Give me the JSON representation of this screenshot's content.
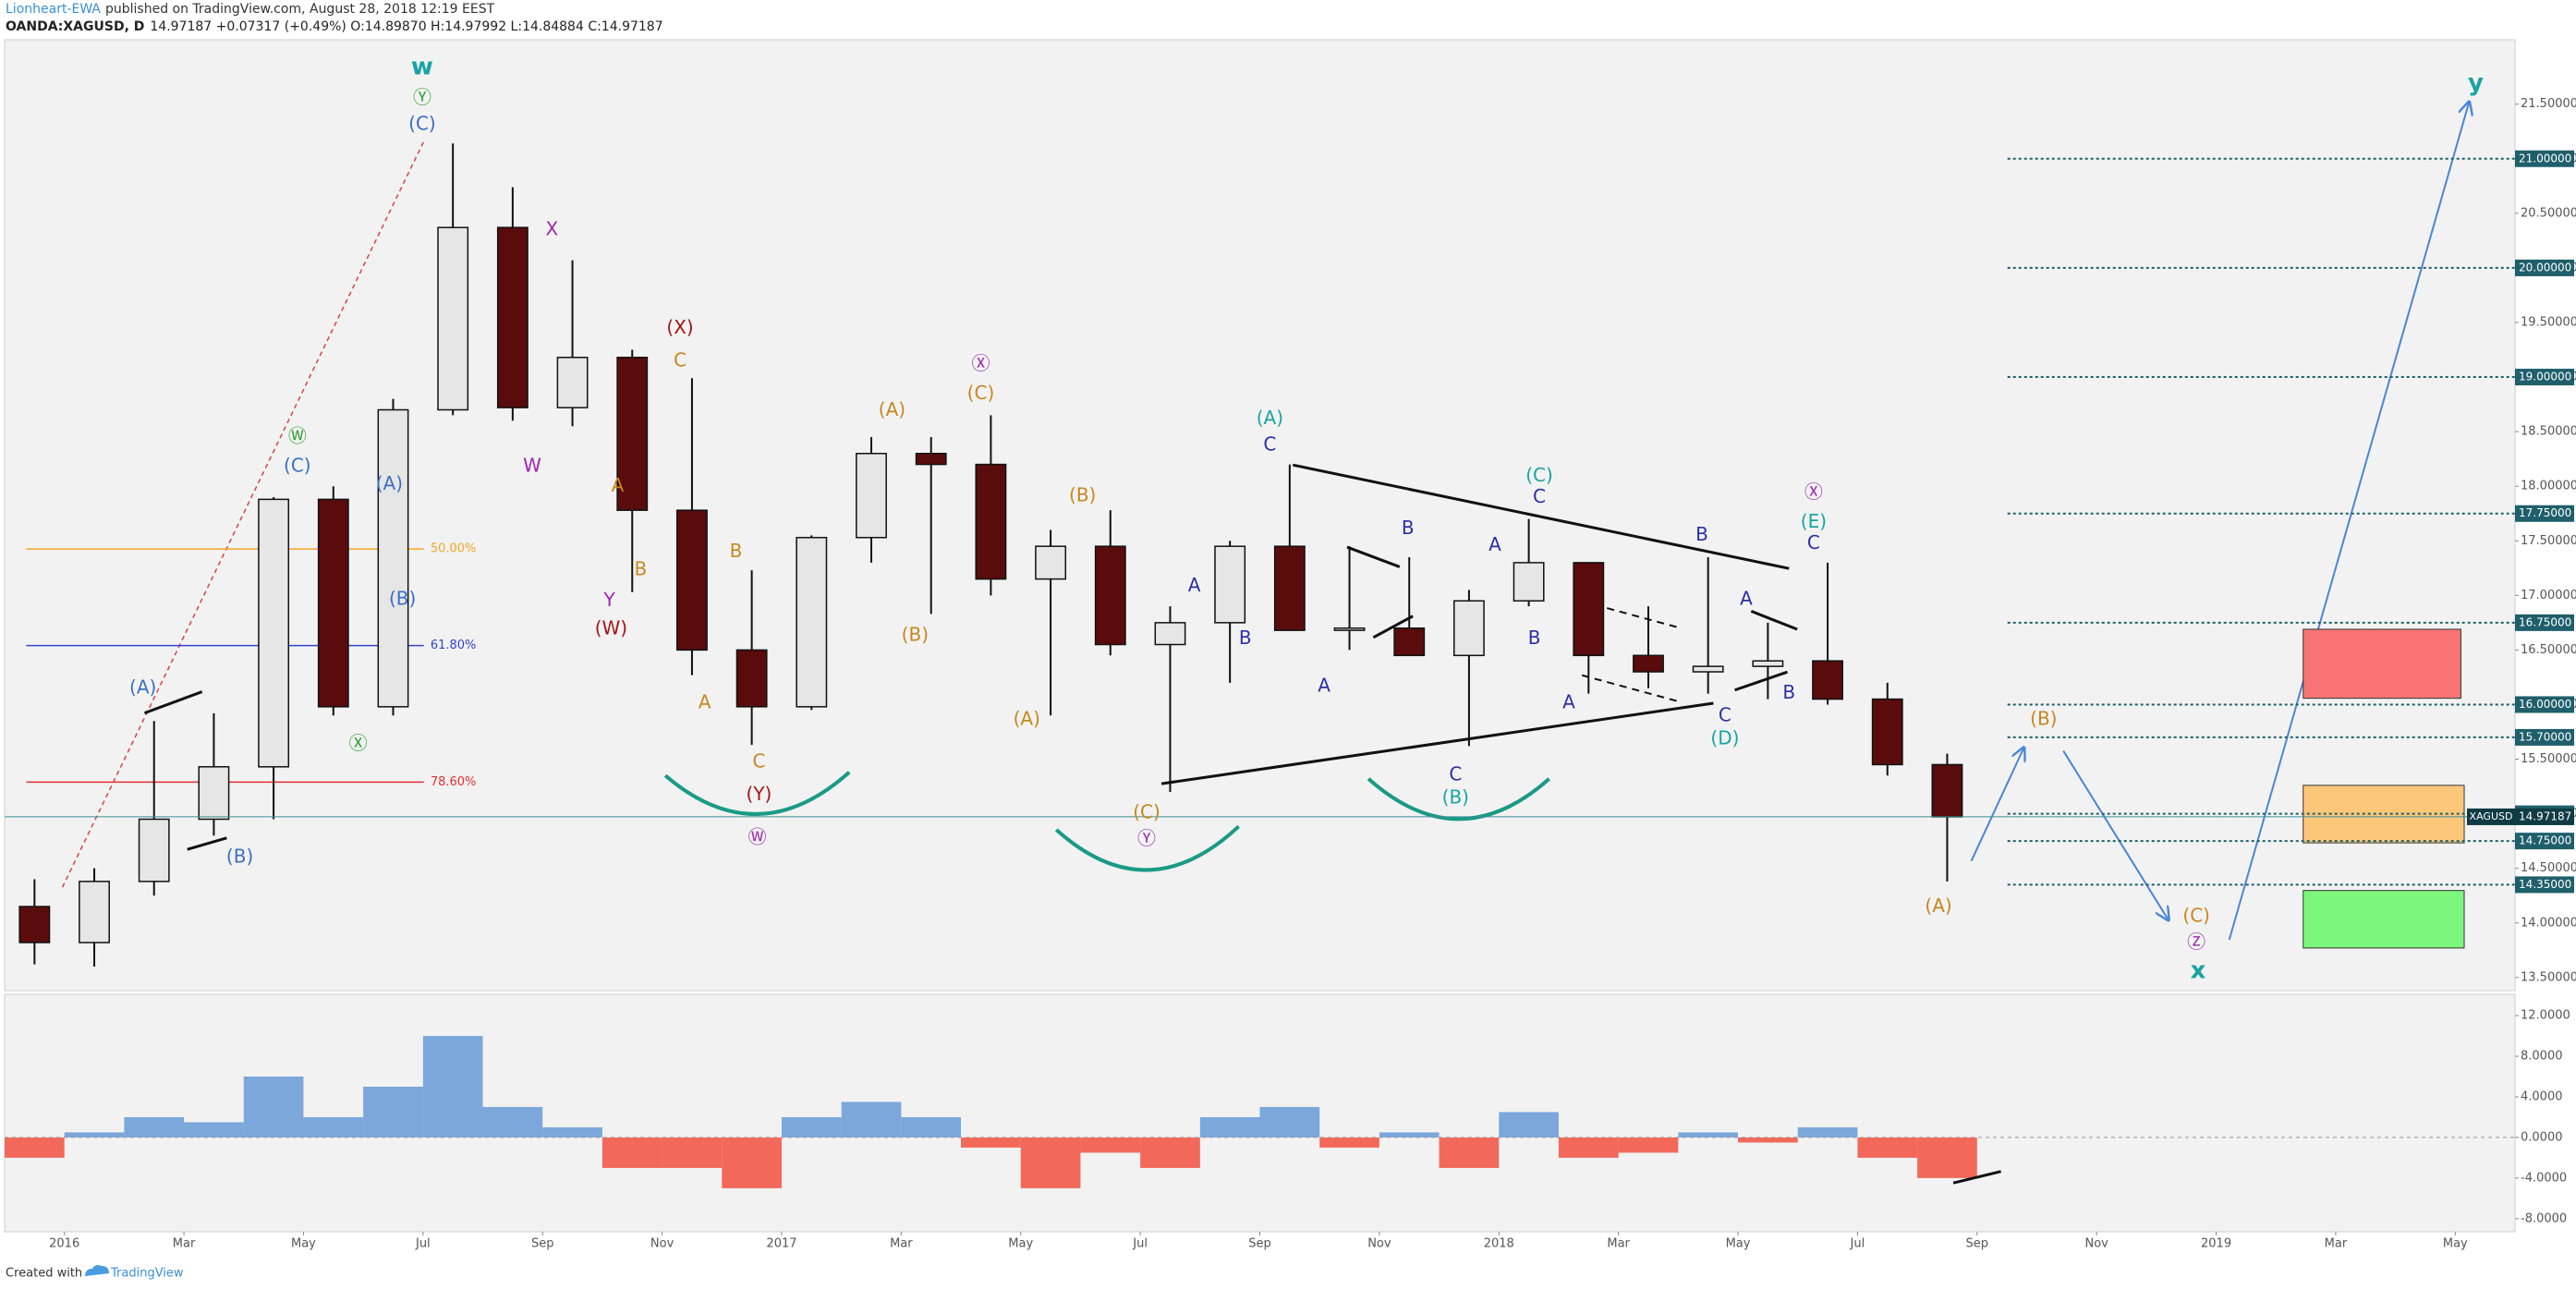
{
  "header": {
    "author": "Lionheart-EWA",
    "byline": "published on TradingView.com, August 28, 2018 12:19 EEST",
    "symbol": "OANDA:XAGUSD, D",
    "quote": "14.97187 +0.07317 (+0.49%) O:14.89870 H:14.97992 L:14.84884 C:14.97187"
  },
  "chart_data": [
    {
      "type": "candlestick",
      "x": [
        "2015-12",
        "2016-01",
        "2016-02",
        "2016-03",
        "2016-04",
        "2016-05",
        "2016-06",
        "2016-07",
        "2016-08",
        "2016-09",
        "2016-10",
        "2016-11",
        "2016-12",
        "2017-01",
        "2017-02",
        "2017-03",
        "2017-04",
        "2017-05",
        "2017-06",
        "2017-07",
        "2017-08",
        "2017-09",
        "2017-10",
        "2017-11",
        "2017-12",
        "2018-01",
        "2018-02",
        "2018-03",
        "2018-04",
        "2018-05",
        "2018-06",
        "2018-07",
        "2018-08"
      ],
      "open": [
        14.15,
        13.82,
        14.38,
        14.95,
        15.43,
        17.88,
        15.98,
        18.7,
        20.37,
        18.72,
        19.18,
        17.78,
        16.5,
        15.98,
        17.53,
        18.3,
        18.2,
        17.15,
        17.45,
        16.55,
        16.75,
        17.45,
        16.68,
        16.7,
        16.45,
        16.95,
        17.3,
        16.45,
        16.3,
        16.35,
        16.4,
        16.05,
        15.45
      ],
      "high": [
        14.4,
        14.5,
        15.85,
        15.92,
        17.9,
        18.0,
        18.8,
        21.14,
        20.74,
        20.07,
        19.25,
        18.99,
        17.23,
        17.55,
        18.45,
        18.45,
        18.65,
        17.6,
        17.78,
        16.9,
        17.5,
        18.2,
        17.45,
        17.35,
        17.05,
        17.7,
        17.3,
        16.9,
        17.35,
        16.75,
        17.3,
        16.2,
        15.55
      ],
      "low": [
        13.62,
        13.6,
        14.25,
        14.8,
        14.95,
        15.9,
        15.9,
        18.65,
        18.6,
        18.55,
        17.03,
        16.27,
        15.63,
        15.95,
        17.3,
        16.83,
        17.0,
        15.9,
        16.45,
        15.2,
        16.2,
        16.7,
        16.5,
        16.5,
        15.62,
        16.9,
        16.1,
        16.15,
        16.1,
        16.05,
        16.0,
        15.35,
        14.38
      ],
      "close": [
        13.82,
        14.38,
        14.95,
        15.43,
        17.88,
        15.98,
        18.7,
        20.37,
        18.72,
        19.18,
        17.78,
        16.5,
        15.98,
        17.53,
        18.3,
        18.2,
        17.15,
        17.45,
        16.55,
        16.75,
        17.45,
        16.68,
        16.7,
        16.45,
        16.95,
        17.3,
        16.45,
        16.3,
        16.35,
        16.4,
        16.05,
        15.45,
        14.97187
      ],
      "up_color": "#e6e6e6",
      "down_color": "#5a0c0c",
      "xlim": [
        "2015-12",
        "2019-06"
      ],
      "xticks": [
        {
          "value": "2016-01",
          "label": "2016"
        },
        {
          "value": "2016-03",
          "label": "Mar"
        },
        {
          "value": "2016-05",
          "label": "May"
        },
        {
          "value": "2016-07",
          "label": "Jul"
        },
        {
          "value": "2016-09",
          "label": "Sep"
        },
        {
          "value": "2016-11",
          "label": "Nov"
        },
        {
          "value": "2017-01",
          "label": "2017"
        },
        {
          "value": "2017-03",
          "label": "Mar"
        },
        {
          "value": "2017-05",
          "label": "May"
        },
        {
          "value": "2017-07",
          "label": "Jul"
        },
        {
          "value": "2017-09",
          "label": "Sep"
        },
        {
          "value": "2017-11",
          "label": "Nov"
        },
        {
          "value": "2018-01",
          "label": "2018"
        },
        {
          "value": "2018-03",
          "label": "Mar"
        },
        {
          "value": "2018-05",
          "label": "May"
        },
        {
          "value": "2018-07",
          "label": "Jul"
        },
        {
          "value": "2018-09",
          "label": "Sep"
        },
        {
          "value": "2018-11",
          "label": "Nov"
        },
        {
          "value": "2019-01",
          "label": "2019"
        },
        {
          "value": "2019-03",
          "label": "Mar"
        },
        {
          "value": "2019-05",
          "label": "May"
        }
      ],
      "ylim": [
        13.38,
        22.09
      ],
      "yticks": [
        {
          "value": 13.5,
          "label": "13.50000"
        },
        {
          "value": 14,
          "label": "14.00000"
        },
        {
          "value": 14.5,
          "label": "14.50000"
        },
        {
          "value": 15,
          "label": "15.00000"
        },
        {
          "value": 15.5,
          "label": "15.50000"
        },
        {
          "value": 16,
          "label": "16.00000"
        },
        {
          "value": 16.5,
          "label": "16.50000"
        },
        {
          "value": 17,
          "label": "17.00000"
        },
        {
          "value": 17.5,
          "label": "17.50000"
        },
        {
          "value": 18,
          "label": "18.00000"
        },
        {
          "value": 18.5,
          "label": "18.50000"
        },
        {
          "value": 19,
          "label": "19.00000"
        },
        {
          "value": 19.5,
          "label": "19.50000"
        },
        {
          "value": 20,
          "label": "20.00000"
        },
        {
          "value": 20.5,
          "label": "20.50000"
        },
        {
          "value": 21,
          "label": "21.00000"
        },
        {
          "value": 21.5,
          "label": "21.50000"
        }
      ],
      "grid": false,
      "levels": [
        {
          "value": 21,
          "label": "21.00000"
        },
        {
          "value": 20,
          "label": "20.00000"
        },
        {
          "value": 19,
          "label": "19.00000"
        },
        {
          "value": 17.75,
          "label": "17.75000"
        },
        {
          "value": 16.75,
          "label": "16.75000"
        },
        {
          "value": 16,
          "label": "16.00000"
        },
        {
          "value": 15.7,
          "label": "15.70000"
        },
        {
          "value": 15,
          "label": "15.00000"
        },
        {
          "value": 14.75,
          "label": "14.75000"
        },
        {
          "value": 14.35,
          "label": "14.35000"
        }
      ],
      "level_color": "#1f5f6b",
      "last_price": {
        "value": 14.97187,
        "label": "14.97187"
      },
      "last_price_color": "#3d8f95",
      "symbol_tag": "XAGUSD",
      "fib": [
        {
          "value": 17.425,
          "label": "50.00%",
          "color": "#f5a623"
        },
        {
          "value": 16.54,
          "label": "61.80%",
          "color": "#3344cc"
        },
        {
          "value": 15.29,
          "label": "78.60%",
          "color": "#e03030"
        }
      ],
      "annotations": [
        {
          "text": "w",
          "color": "#1aa3a3"
        },
        {
          "text": "Ⓨ",
          "color": "#2ea02e"
        },
        {
          "text": "(C)",
          "color": "#3a6fc4"
        },
        {
          "text": "Ⓦ",
          "color": "#2ea02e"
        },
        {
          "text": "(C)",
          "color": "#3a6fc4"
        },
        {
          "text": "(A)",
          "color": "#3a6fc4"
        },
        {
          "text": "(B)",
          "color": "#3a6fc4"
        },
        {
          "text": "Ⓧ",
          "color": "#2ea02e"
        },
        {
          "text": "(A)",
          "color": "#3a6fc4"
        },
        {
          "text": "(B)",
          "color": "#3a6fc4"
        },
        {
          "text": "X",
          "color": "#9c27b0"
        },
        {
          "text": "W",
          "color": "#9c27b0"
        },
        {
          "text": "Y",
          "color": "#9c27b0"
        },
        {
          "text": "(W)",
          "color": "#a31515"
        },
        {
          "text": "(X)",
          "color": "#a31515"
        },
        {
          "text": "C",
          "color": "#c8861e"
        },
        {
          "text": "A",
          "color": "#c8861e"
        },
        {
          "text": "B",
          "color": "#c8861e"
        },
        {
          "text": "B",
          "color": "#c8861e"
        },
        {
          "text": "A",
          "color": "#c8861e"
        },
        {
          "text": "C",
          "color": "#c8861e"
        },
        {
          "text": "(Y)",
          "color": "#a31515"
        },
        {
          "text": "Ⓦ",
          "color": "#9c27b0"
        },
        {
          "text": "Ⓧ",
          "color": "#9c27b0"
        },
        {
          "text": "(C)",
          "color": "#c8861e"
        },
        {
          "text": "(A)",
          "color": "#c8861e"
        },
        {
          "text": "(B)",
          "color": "#c8861e"
        },
        {
          "text": "(B)",
          "color": "#c8861e"
        },
        {
          "text": "(A)",
          "color": "#c8861e"
        },
        {
          "text": "(C)",
          "color": "#c8861e"
        },
        {
          "text": "Ⓨ",
          "color": "#9c27b0"
        },
        {
          "text": "(A)",
          "color": "#1aa3a3"
        },
        {
          "text": "C",
          "color": "#2b2fa8"
        },
        {
          "text": "A",
          "color": "#2b2fa8"
        },
        {
          "text": "B",
          "color": "#2b2fa8"
        },
        {
          "text": "A",
          "color": "#2b2fa8"
        },
        {
          "text": "B",
          "color": "#2b2fa8"
        },
        {
          "text": "C",
          "color": "#2b2fa8"
        },
        {
          "text": "(B)",
          "color": "#1aa3a3"
        },
        {
          "text": "(C)",
          "color": "#1aa3a3"
        },
        {
          "text": "C",
          "color": "#2b2fa8"
        },
        {
          "text": "A",
          "color": "#2b2fa8"
        },
        {
          "text": "B",
          "color": "#2b2fa8"
        },
        {
          "text": "A",
          "color": "#2b2fa8"
        },
        {
          "text": "B",
          "color": "#2b2fa8"
        },
        {
          "text": "C",
          "color": "#2b2fa8"
        },
        {
          "text": "(D)",
          "color": "#1aa3a3"
        },
        {
          "text": "A",
          "color": "#2b2fa8"
        },
        {
          "text": "B",
          "color": "#2b2fa8"
        },
        {
          "text": "Ⓧ",
          "color": "#9c27b0"
        },
        {
          "text": "(E)",
          "color": "#1aa3a3"
        },
        {
          "text": "C",
          "color": "#2b2fa8"
        },
        {
          "text": "(A)",
          "color": "#c8861e"
        },
        {
          "text": "(B)",
          "color": "#c8861e"
        },
        {
          "text": "(C)",
          "color": "#c8861e"
        },
        {
          "text": "Ⓩ",
          "color": "#9c27b0"
        },
        {
          "text": "x",
          "color": "#1aa3a3"
        },
        {
          "text": "y",
          "color": "#1aa3a3"
        }
      ]
    },
    {
      "type": "bar",
      "x": [
        "2015-12",
        "2016-01",
        "2016-02",
        "2016-03",
        "2016-04",
        "2016-05",
        "2016-06",
        "2016-07",
        "2016-08",
        "2016-09",
        "2016-10",
        "2016-11",
        "2016-12",
        "2017-01",
        "2017-02",
        "2017-03",
        "2017-04",
        "2017-05",
        "2017-06",
        "2017-07",
        "2017-08",
        "2017-09",
        "2017-10",
        "2017-11",
        "2017-12",
        "2018-01",
        "2018-02",
        "2018-03",
        "2018-04",
        "2018-05",
        "2018-06",
        "2018-07",
        "2018-08"
      ],
      "values": [
        -2,
        0.5,
        2,
        1.5,
        6,
        2,
        5,
        10,
        3,
        1,
        -3,
        -3,
        -5,
        2,
        3.5,
        2,
        -1,
        -5,
        -1.5,
        -3,
        2,
        3,
        -1,
        0.5,
        -3,
        2.5,
        -2,
        -1.5,
        0.5,
        -0.5,
        1,
        -2,
        -4
      ],
      "pos_color": "#6f9fd8",
      "neg_color": "#f25a4a",
      "ylim": [
        -9.29,
        14.1
      ],
      "yticks": [
        {
          "value": 12,
          "label": "12.0000"
        },
        {
          "value": 8,
          "label": "8.0000"
        },
        {
          "value": 4,
          "label": "4.0000"
        },
        {
          "value": 0,
          "label": "0.0000"
        },
        {
          "value": -4,
          "label": "-4.0000"
        },
        {
          "value": -8,
          "label": "-8.0000"
        }
      ]
    }
  ],
  "footer": {
    "created": "Created with",
    "brand": "TradingView"
  }
}
